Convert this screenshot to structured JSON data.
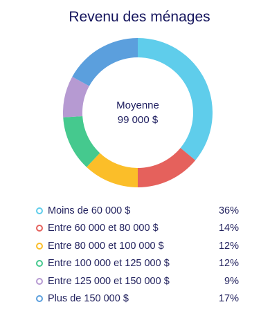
{
  "chart_data": {
    "type": "pie",
    "title": "Revenu des ménages",
    "center": {
      "label": "Moyenne",
      "value": "99 000 $"
    },
    "slices": [
      {
        "label": "Moins de 60 000 $",
        "value": 36,
        "display": "36%",
        "color": "#5fcdeb"
      },
      {
        "label": "Entre 60 000 et 80 000 $",
        "value": 14,
        "display": "14%",
        "color": "#e5615c"
      },
      {
        "label": "Entre 80 000 et 100 000 $",
        "value": 12,
        "display": "12%",
        "color": "#fbbe29"
      },
      {
        "label": "Entre 100 000 et 125 000 $",
        "value": 12,
        "display": "12%",
        "color": "#45c98e"
      },
      {
        "label": "Entre 125 000 et 150 000 $",
        "value": 9,
        "display": "9%",
        "color": "#b69ad2"
      },
      {
        "label": "Plus de 150 000 $",
        "value": 17,
        "display": "17%",
        "color": "#5b9fdd"
      }
    ],
    "legend_position": "bottom",
    "donut": true
  }
}
